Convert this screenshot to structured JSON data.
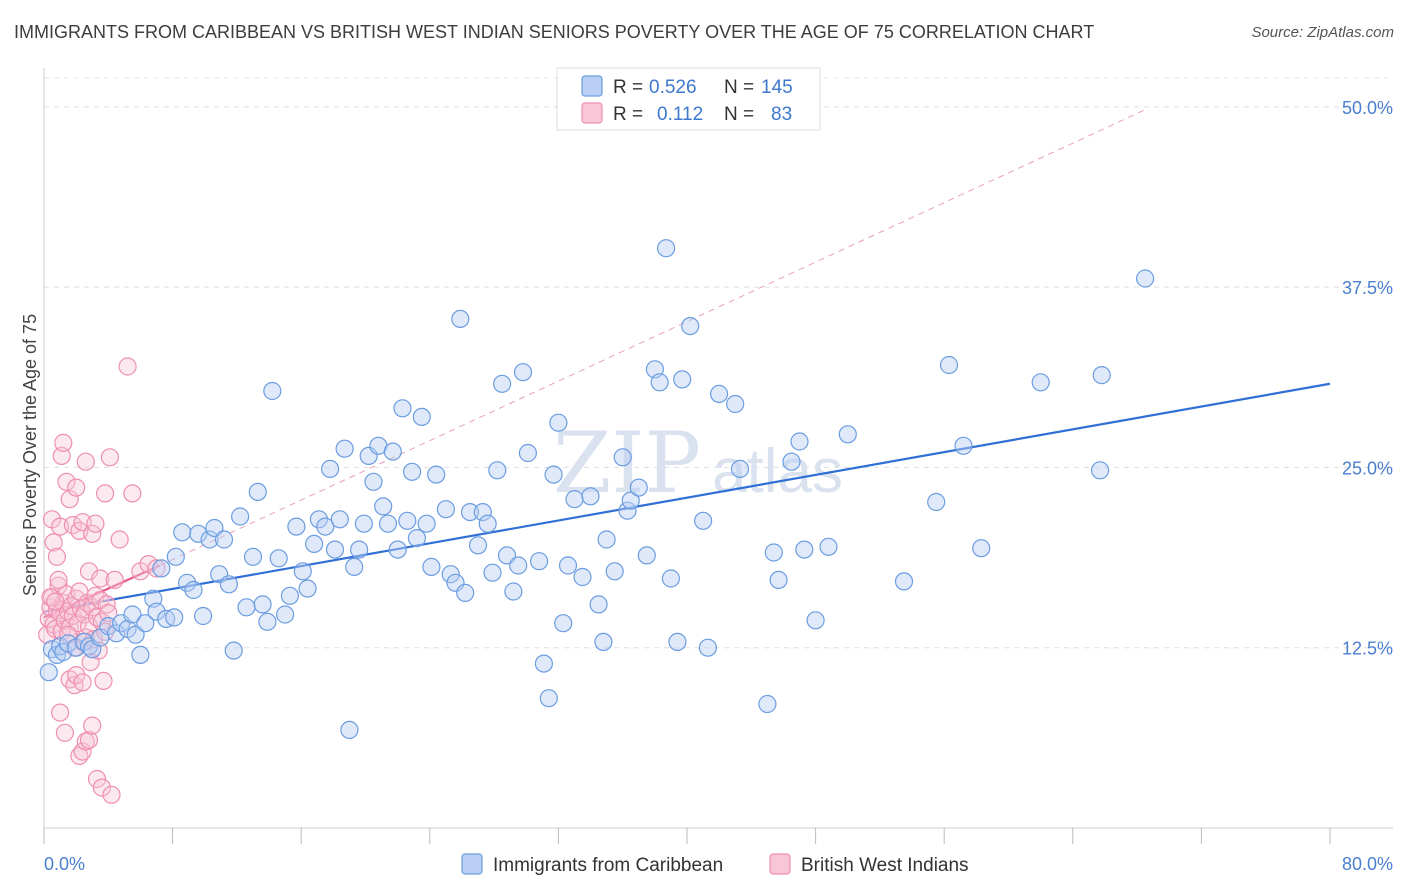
{
  "title": "IMMIGRANTS FROM CARIBBEAN VS BRITISH WEST INDIAN SENIORS POVERTY OVER THE AGE OF 75 CORRELATION CHART",
  "source": "Source: ZipAtlas.com",
  "watermark": {
    "part1": "ZIP",
    "part2": "atlas"
  },
  "legend": {
    "rows": [
      {
        "r_label": "R =",
        "r_value": "0.526",
        "n_label": "N =",
        "n_value": "145",
        "color": "#6b9de0"
      },
      {
        "r_label": "R =",
        "r_value": "0.112",
        "n_label": "N =",
        "n_value": "83",
        "color": "#ee8fb0"
      }
    ]
  },
  "bottom_legend": [
    {
      "label": "Immigrants from Caribbean",
      "color": "#6b9de0"
    },
    {
      "label": "British West Indians",
      "color": "#ee8fb0"
    }
  ],
  "chart_data": {
    "type": "scatter",
    "title": "IMMIGRANTS FROM CARIBBEAN VS BRITISH WEST INDIAN SENIORS POVERTY OVER THE AGE OF 75 CORRELATION CHART",
    "xlabel": "",
    "ylabel": "Seniors Poverty Over the Age of 75",
    "xlim": [
      0,
      80
    ],
    "ylim": [
      0,
      52
    ],
    "x_tick_labels": [
      "0.0%",
      "80.0%"
    ],
    "y_ticks": [
      12.5,
      25,
      37.5,
      50
    ],
    "y_tick_labels": [
      "12.5%",
      "25.0%",
      "37.5%",
      "50.0%"
    ],
    "grid": true,
    "legend_position": "top-center",
    "series": [
      {
        "name": "Immigrants from Caribbean",
        "color": "#6b9de0",
        "trend": {
          "x": [
            0,
            80
          ],
          "y": [
            15.0,
            30.8
          ],
          "style": "solid"
        },
        "points": [
          [
            0.3,
            10.8
          ],
          [
            0.5,
            12.4
          ],
          [
            0.8,
            12.0
          ],
          [
            1.0,
            12.6
          ],
          [
            1.2,
            12.2
          ],
          [
            1.5,
            12.8
          ],
          [
            2.0,
            12.5
          ],
          [
            2.5,
            12.9
          ],
          [
            2.8,
            12.6
          ],
          [
            3.0,
            12.4
          ],
          [
            3.5,
            13.2
          ],
          [
            4.0,
            14.0
          ],
          [
            4.5,
            13.5
          ],
          [
            4.8,
            14.2
          ],
          [
            5.2,
            13.8
          ],
          [
            5.5,
            14.8
          ],
          [
            5.7,
            13.4
          ],
          [
            6.0,
            12.0
          ],
          [
            6.3,
            14.2
          ],
          [
            6.8,
            15.9
          ],
          [
            7.0,
            15.0
          ],
          [
            7.3,
            18.0
          ],
          [
            7.6,
            14.5
          ],
          [
            8.1,
            14.6
          ],
          [
            8.2,
            18.8
          ],
          [
            8.6,
            20.5
          ],
          [
            8.9,
            17.0
          ],
          [
            9.3,
            16.5
          ],
          [
            9.6,
            20.4
          ],
          [
            9.9,
            14.7
          ],
          [
            10.3,
            20.0
          ],
          [
            10.6,
            20.8
          ],
          [
            10.9,
            17.6
          ],
          [
            11.2,
            20.0
          ],
          [
            11.5,
            16.9
          ],
          [
            11.8,
            12.3
          ],
          [
            12.2,
            21.6
          ],
          [
            12.6,
            15.3
          ],
          [
            13.0,
            18.8
          ],
          [
            13.3,
            23.3
          ],
          [
            13.6,
            15.5
          ],
          [
            13.9,
            14.3
          ],
          [
            14.2,
            30.3
          ],
          [
            14.6,
            18.7
          ],
          [
            15.0,
            14.8
          ],
          [
            15.3,
            16.1
          ],
          [
            15.7,
            20.9
          ],
          [
            16.1,
            17.8
          ],
          [
            16.4,
            16.6
          ],
          [
            16.8,
            19.7
          ],
          [
            17.1,
            21.4
          ],
          [
            17.5,
            20.9
          ],
          [
            17.8,
            24.9
          ],
          [
            18.1,
            19.3
          ],
          [
            18.4,
            21.4
          ],
          [
            18.7,
            26.3
          ],
          [
            19.0,
            6.8
          ],
          [
            19.3,
            18.1
          ],
          [
            19.6,
            19.3
          ],
          [
            19.9,
            21.1
          ],
          [
            20.2,
            25.8
          ],
          [
            20.5,
            24.0
          ],
          [
            20.8,
            26.5
          ],
          [
            21.1,
            22.3
          ],
          [
            21.4,
            21.1
          ],
          [
            21.7,
            26.1
          ],
          [
            22.0,
            19.3
          ],
          [
            22.3,
            29.1
          ],
          [
            22.6,
            21.3
          ],
          [
            22.9,
            24.7
          ],
          [
            23.2,
            20.1
          ],
          [
            23.5,
            28.5
          ],
          [
            23.8,
            21.1
          ],
          [
            24.1,
            18.1
          ],
          [
            24.4,
            24.5
          ],
          [
            25.0,
            22.1
          ],
          [
            25.3,
            17.6
          ],
          [
            25.6,
            17.0
          ],
          [
            25.9,
            35.3
          ],
          [
            26.2,
            16.3
          ],
          [
            26.5,
            21.9
          ],
          [
            27.0,
            19.6
          ],
          [
            27.3,
            21.9
          ],
          [
            27.6,
            21.1
          ],
          [
            27.9,
            17.7
          ],
          [
            28.2,
            24.8
          ],
          [
            28.5,
            30.8
          ],
          [
            28.8,
            18.9
          ],
          [
            29.2,
            16.4
          ],
          [
            29.5,
            18.2
          ],
          [
            29.8,
            31.6
          ],
          [
            30.1,
            26.0
          ],
          [
            30.8,
            18.5
          ],
          [
            31.1,
            11.4
          ],
          [
            31.4,
            9.0
          ],
          [
            31.7,
            24.5
          ],
          [
            32.0,
            28.1
          ],
          [
            32.3,
            14.2
          ],
          [
            32.6,
            18.2
          ],
          [
            33.0,
            22.8
          ],
          [
            33.5,
            17.4
          ],
          [
            34.0,
            23.0
          ],
          [
            34.5,
            15.5
          ],
          [
            34.8,
            12.9
          ],
          [
            35.0,
            20.0
          ],
          [
            35.5,
            17.8
          ],
          [
            36.0,
            25.7
          ],
          [
            36.3,
            22.0
          ],
          [
            36.5,
            22.7
          ],
          [
            37.0,
            23.6
          ],
          [
            37.5,
            18.9
          ],
          [
            38.0,
            31.8
          ],
          [
            38.3,
            30.9
          ],
          [
            38.7,
            40.2
          ],
          [
            39.0,
            17.3
          ],
          [
            39.4,
            12.9
          ],
          [
            39.7,
            31.1
          ],
          [
            40.2,
            34.8
          ],
          [
            41.0,
            21.3
          ],
          [
            41.3,
            12.5
          ],
          [
            42.0,
            30.1
          ],
          [
            43.0,
            29.4
          ],
          [
            43.3,
            24.9
          ],
          [
            45.0,
            8.6
          ],
          [
            45.4,
            19.1
          ],
          [
            45.7,
            17.2
          ],
          [
            46.5,
            25.4
          ],
          [
            47.0,
            26.8
          ],
          [
            47.3,
            19.3
          ],
          [
            48.0,
            14.4
          ],
          [
            48.8,
            19.5
          ],
          [
            50.0,
            27.3
          ],
          [
            53.5,
            17.1
          ],
          [
            55.5,
            22.6
          ],
          [
            56.3,
            32.1
          ],
          [
            57.2,
            26.5
          ],
          [
            58.3,
            19.4
          ],
          [
            62.0,
            30.9
          ],
          [
            65.7,
            24.8
          ],
          [
            65.8,
            31.4
          ],
          [
            68.5,
            38.1
          ]
        ]
      },
      {
        "name": "British West Indians",
        "color": "#ee8fb0",
        "trend": {
          "x": [
            0,
            7.2
          ],
          "y": [
            14.6,
            18.2
          ],
          "style": "solid",
          "extended": {
            "x": [
              7.2,
              68.5
            ],
            "y": [
              18.2,
              49.8
            ],
            "style": "dashed"
          }
        },
        "points": [
          [
            0.2,
            13.4
          ],
          [
            0.3,
            14.5
          ],
          [
            0.4,
            15.3
          ],
          [
            0.5,
            16.0
          ],
          [
            0.6,
            14.1
          ],
          [
            0.7,
            13.8
          ],
          [
            0.8,
            15.1
          ],
          [
            0.9,
            16.8
          ],
          [
            1.0,
            14.9
          ],
          [
            1.1,
            13.6
          ],
          [
            1.2,
            15.6
          ],
          [
            1.3,
            14.4
          ],
          [
            1.4,
            16.2
          ],
          [
            1.5,
            15.0
          ],
          [
            1.6,
            13.9
          ],
          [
            1.7,
            15.4
          ],
          [
            1.8,
            14.7
          ],
          [
            1.9,
            12.5
          ],
          [
            2.0,
            15.9
          ],
          [
            2.1,
            14.2
          ],
          [
            2.2,
            16.4
          ],
          [
            2.3,
            15.2
          ],
          [
            2.4,
            12.9
          ],
          [
            2.5,
            14.8
          ],
          [
            2.6,
            13.2
          ],
          [
            2.7,
            15.6
          ],
          [
            2.8,
            14.0
          ],
          [
            2.9,
            11.5
          ],
          [
            3.0,
            15.3
          ],
          [
            3.1,
            13.1
          ],
          [
            3.2,
            16.1
          ],
          [
            3.3,
            14.6
          ],
          [
            3.4,
            12.3
          ],
          [
            3.5,
            15.8
          ],
          [
            3.6,
            14.3
          ],
          [
            3.7,
            10.2
          ],
          [
            3.8,
            13.6
          ],
          [
            3.9,
            15.5
          ],
          [
            4.0,
            14.9
          ],
          [
            0.5,
            21.4
          ],
          [
            0.6,
            19.8
          ],
          [
            0.8,
            18.8
          ],
          [
            0.9,
            17.2
          ],
          [
            1.0,
            20.9
          ],
          [
            1.1,
            25.8
          ],
          [
            1.2,
            26.7
          ],
          [
            1.4,
            24.0
          ],
          [
            1.6,
            22.8
          ],
          [
            1.8,
            21.0
          ],
          [
            2.0,
            23.6
          ],
          [
            2.2,
            20.6
          ],
          [
            2.4,
            21.2
          ],
          [
            2.6,
            25.4
          ],
          [
            2.8,
            17.8
          ],
          [
            3.0,
            20.4
          ],
          [
            3.2,
            21.1
          ],
          [
            3.5,
            17.3
          ],
          [
            3.8,
            23.2
          ],
          [
            4.1,
            25.7
          ],
          [
            4.4,
            17.2
          ],
          [
            4.7,
            20.0
          ],
          [
            5.2,
            32.0
          ],
          [
            5.5,
            23.2
          ],
          [
            6.0,
            17.8
          ],
          [
            6.5,
            18.3
          ],
          [
            7.0,
            18.0
          ],
          [
            1.0,
            8.0
          ],
          [
            1.3,
            6.6
          ],
          [
            1.6,
            10.3
          ],
          [
            1.9,
            9.9
          ],
          [
            2.2,
            5.0
          ],
          [
            2.4,
            5.3
          ],
          [
            2.6,
            6.0
          ],
          [
            2.8,
            6.1
          ],
          [
            3.0,
            7.1
          ],
          [
            3.3,
            3.4
          ],
          [
            3.6,
            2.8
          ],
          [
            4.2,
            2.3
          ],
          [
            2.0,
            10.6
          ],
          [
            2.4,
            10.1
          ],
          [
            1.5,
            13.4
          ],
          [
            0.4,
            16.0
          ],
          [
            0.7,
            15.7
          ]
        ]
      }
    ]
  }
}
